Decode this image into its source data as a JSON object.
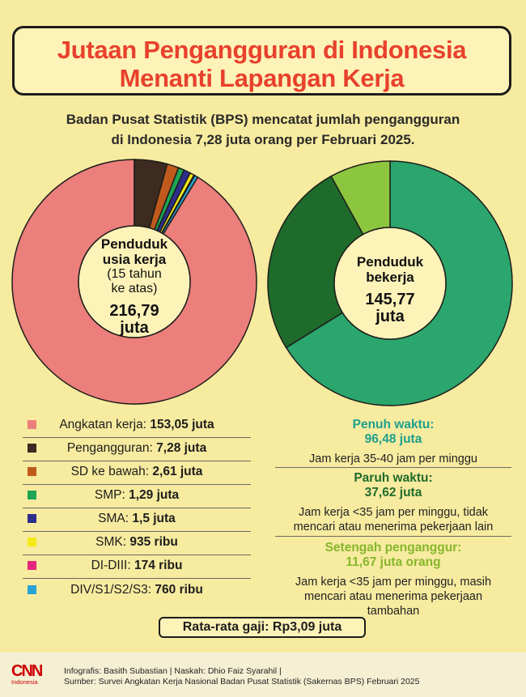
{
  "title": {
    "line1": "Jutaan Pengangguran di Indonesia",
    "line2": "Menanti Lapangan Kerja"
  },
  "subtitle": {
    "line1": "Badan Pusat Statistik (BPS) mencatat jumlah pengangguran",
    "line2": "di Indonesia 7,28 juta orang per Februari 2025."
  },
  "chart_data": [
    {
      "type": "pie",
      "center_label": [
        "Penduduk",
        "usia kerja"
      ],
      "center_sub": [
        "(15 tahun",
        "ke atas)"
      ],
      "center_value": [
        "216,79",
        "juta"
      ],
      "slices": [
        {
          "name": "Angkatan kerja",
          "label": "153,05 juta",
          "value": 153.05,
          "color": "#ec7f7b"
        },
        {
          "name": "Pengangguran",
          "label": "7,28 juta",
          "value": 7.28,
          "color": "#3d2b1f"
        },
        {
          "name": "SD ke bawah",
          "label": "2,61 juta",
          "value": 2.61,
          "color": "#bf5a1c"
        },
        {
          "name": "SMP",
          "label": "1,29 juta",
          "value": 1.29,
          "color": "#1fa553"
        },
        {
          "name": "SMA",
          "label": "1,5 juta",
          "value": 1.5,
          "color": "#2e2f8c"
        },
        {
          "name": "SMK",
          "label": "935 ribu",
          "value": 0.935,
          "color": "#f4ea18"
        },
        {
          "name": "DI-DIII",
          "label": "174 ribu",
          "value": 0.174,
          "color": "#e3267e"
        },
        {
          "name": "DIV/S1/S2/S3",
          "label": "760 ribu",
          "value": 0.76,
          "color": "#29a3d6"
        }
      ]
    },
    {
      "type": "pie",
      "center_label": [
        "Penduduk",
        "bekerja"
      ],
      "center_value": [
        "145,77",
        "juta"
      ],
      "slices": [
        {
          "name": "Penuh waktu",
          "label": "96,48 juta",
          "value": 96.48,
          "color": "#2ba66c",
          "desc": "Jam kerja 35-40 jam per minggu"
        },
        {
          "name": "Paruh waktu",
          "label": "37,62 juta",
          "value": 37.62,
          "color": "#1f6b2b",
          "desc": "Jam kerja <35 jam per minggu, tidak mencari atau menerima pekerjaan lain"
        },
        {
          "name": "Setengah penganggur",
          "label": "11,67 juta orang",
          "value": 11.67,
          "color": "#8cc63f",
          "desc": "Jam kerja <35 jam per minggu, masih mencari atau menerima pekerjaan tambahan"
        }
      ]
    }
  ],
  "right_blocks": [
    {
      "head": "Penuh waktu:",
      "value": "96,48 juta",
      "desc": [
        "Jam kerja 35-40 jam per minggu"
      ],
      "color": "#1ea08c"
    },
    {
      "head": "Paruh waktu:",
      "value": "37,62 juta",
      "desc": [
        "Jam kerja <35 jam per minggu, tidak",
        "mencari atau menerima pekerjaan lain"
      ],
      "color": "#1f6b2b"
    },
    {
      "head": "Setengah penganggur:",
      "value": "11,67 juta orang",
      "desc": [
        "Jam kerja <35 jam per minggu, masih",
        "mencari atau menerima pekerjaan",
        "tambahan"
      ],
      "color": "#86b62c"
    }
  ],
  "salary": {
    "label": "Rata-rata gaji:",
    "value": "Rp3,09 juta"
  },
  "footer": {
    "logo_main": "CNN",
    "logo_sub": "Indonesia",
    "credit_line1": "Infografis: Basith Subastian | Naskah: Dhio Faiz Syarahil |",
    "credit_line2": "Sumber: Survei Angkatan Kerja Nasional Badan Pusat Statistik (Sakernas BPS) Februari 2025"
  }
}
